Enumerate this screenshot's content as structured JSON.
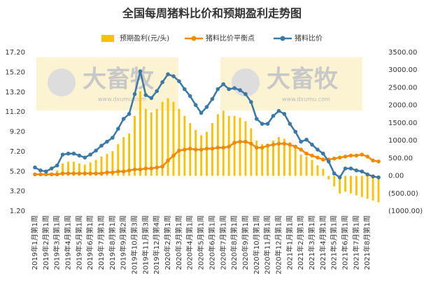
{
  "chart_data": {
    "type": "combo",
    "title": "全国每周猪料比价和预期盈利走势图",
    "watermark_text": "大畜牧",
    "watermark_url": "www.dxumu.com",
    "categories": [
      "2019年1月第1周",
      null,
      "2019年2月第1周",
      null,
      "2019年3月第1周",
      null,
      "2019年4月第1周",
      null,
      "2019年5月第1周",
      null,
      "2019年6月第1周",
      null,
      "2019年7月第1周",
      null,
      "2019年8月第1周",
      null,
      "2019年9月第2周",
      null,
      "2019年10月第3周",
      null,
      "2019年11月第3周",
      null,
      "2019年12月第4周",
      null,
      "2020年2月第1周",
      null,
      "2020年3月第1周",
      null,
      "2020年4月第1周",
      null,
      "2020年5月第1周",
      null,
      "2020年6月第1周",
      null,
      "2020年7月第1周",
      null,
      "2020年8月第1周",
      null,
      "2020年9月第1周",
      null,
      "2020年10月第1周",
      null,
      "2020年11月第1周",
      null,
      "2020年12月第1周",
      null,
      "2021年1月第1周",
      null,
      "2021年2月第1周",
      null,
      "2021年3月第1周",
      null,
      "2021年4月第1周",
      null,
      "2021年5月第1周",
      null,
      "2021年6月第1周",
      null,
      "2021年7月第1周",
      null,
      "2021年8月第1周",
      null,
      null
    ],
    "series": [
      {
        "name": "预期盈利(元/头)",
        "type": "bar",
        "axis": "y2",
        "color": "#ffc000",
        "values": [
          80,
          20,
          0,
          60,
          150,
          350,
          400,
          400,
          350,
          320,
          380,
          450,
          550,
          620,
          700,
          900,
          1100,
          1200,
          1700,
          2400,
          1900,
          1800,
          1900,
          2100,
          2200,
          2100,
          1900,
          1700,
          1500,
          1300,
          1150,
          1250,
          1500,
          1750,
          1850,
          1700,
          1700,
          1650,
          1550,
          1350,
          1000,
          900,
          850,
          1000,
          1100,
          1050,
          950,
          800,
          600,
          550,
          450,
          300,
          200,
          -100,
          -300,
          -500,
          -450,
          -500,
          -550,
          -600,
          -650,
          -700,
          -750
        ]
      },
      {
        "name": "猪料比价平衡点",
        "type": "line",
        "color": "#f08a00",
        "values": [
          4.9,
          4.9,
          4.9,
          4.9,
          4.9,
          5.0,
          5.0,
          5.0,
          5.0,
          5.0,
          5.0,
          5.0,
          5.0,
          5.1,
          5.1,
          5.2,
          5.2,
          5.3,
          5.4,
          5.4,
          5.5,
          5.5,
          5.6,
          5.7,
          6.3,
          6.8,
          7.3,
          7.4,
          7.5,
          7.4,
          7.4,
          7.5,
          7.5,
          7.6,
          7.6,
          7.7,
          8.1,
          8.2,
          8.2,
          8.0,
          7.6,
          7.6,
          7.8,
          7.9,
          8.0,
          8.0,
          7.9,
          7.7,
          7.4,
          7.0,
          6.8,
          6.6,
          6.4,
          6.4,
          6.5,
          6.6,
          6.7,
          6.8,
          6.8,
          6.9,
          6.7,
          6.3,
          6.2
        ]
      },
      {
        "name": "猪料比价",
        "type": "line",
        "color": "#3a78a6",
        "values": [
          5.6,
          5.3,
          5.2,
          5.5,
          5.8,
          6.9,
          7.0,
          7.0,
          6.8,
          6.6,
          6.9,
          7.3,
          7.8,
          8.2,
          8.6,
          9.5,
          10.5,
          11.0,
          13.0,
          15.3,
          12.9,
          12.6,
          13.3,
          14.2,
          15.0,
          14.8,
          14.3,
          13.5,
          12.8,
          11.9,
          11.1,
          11.7,
          12.5,
          13.5,
          14.0,
          13.5,
          13.6,
          13.4,
          13.0,
          12.2,
          10.5,
          10.0,
          10.0,
          10.8,
          11.3,
          11.0,
          10.0,
          9.2,
          8.2,
          8.4,
          7.9,
          7.4,
          7.0,
          6.2,
          5.0,
          4.6,
          5.5,
          5.5,
          5.3,
          5.2,
          4.9,
          4.7,
          4.6
        ]
      }
    ],
    "ylim": [
      1.2,
      17.2
    ],
    "yticks": [
      {
        "value": 1.2,
        "label": "1.20"
      },
      {
        "value": 3.2,
        "label": "3.20"
      },
      {
        "value": 5.2,
        "label": "5.20"
      },
      {
        "value": 7.2,
        "label": "7.20"
      },
      {
        "value": 9.2,
        "label": "9.20"
      },
      {
        "value": 11.2,
        "label": "11.20"
      },
      {
        "value": 13.2,
        "label": "13.20"
      },
      {
        "value": 15.2,
        "label": "15.20"
      },
      {
        "value": 17.2,
        "label": "17.20"
      }
    ],
    "y2lim": [
      -1000,
      3500
    ],
    "y2ticks": [
      {
        "value": -1000,
        "label": "(1000.00)"
      },
      {
        "value": -500,
        "label": "(500.00)"
      },
      {
        "value": 0,
        "label": "0.00"
      },
      {
        "value": 500,
        "label": "500.00"
      },
      {
        "value": 1000,
        "label": "1000.00"
      },
      {
        "value": 1500,
        "label": "1500.00"
      },
      {
        "value": 2000,
        "label": "2000.00"
      },
      {
        "value": 2500,
        "label": "2500.00"
      },
      {
        "value": 3000,
        "label": "3000.00"
      },
      {
        "value": 3500,
        "label": "3500.00"
      }
    ],
    "legend": "top"
  }
}
